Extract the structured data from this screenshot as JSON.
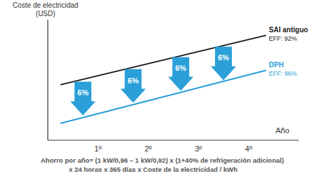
{
  "chart_data": {
    "type": "line",
    "ylabel": "Coste de electricidad\n(USD)",
    "xlabel": "Año",
    "x": [
      0.25,
      4.35
    ],
    "xlim": [
      0,
      5
    ],
    "xticks": [
      {
        "value": 1,
        "label": "1º"
      },
      {
        "value": 2,
        "label": "2º"
      },
      {
        "value": 3,
        "label": "3º"
      },
      {
        "value": 4,
        "label": "4º"
      }
    ],
    "ylim": [
      0,
      100
    ],
    "tick_labels": "x",
    "grid": false,
    "series": [
      {
        "name": "SAI antiguo",
        "note": "EFF: 92%",
        "color": "#1a1a1a",
        "values": [
          46,
          87
        ]
      },
      {
        "name": "DPH",
        "note": "EFF: 96%",
        "color": "#2a9fd8",
        "values": [
          14,
          58
        ]
      }
    ],
    "annotations": [
      {
        "text": "6%",
        "x": 0.7,
        "y": 34.6
      },
      {
        "text": "6%",
        "x": 1.7,
        "y": 45
      },
      {
        "text": "6%",
        "x": 2.65,
        "y": 55
      },
      {
        "text": "6%",
        "x": 3.5,
        "y": 63.7
      }
    ],
    "footnote": [
      "Ahorro por año= (1 kW/0,96 – 1 kW/0,92) x (1+40% de refrigeración adicional)",
      "x 24 horas x 365 días x Coste de la electricidad / kWh"
    ]
  }
}
